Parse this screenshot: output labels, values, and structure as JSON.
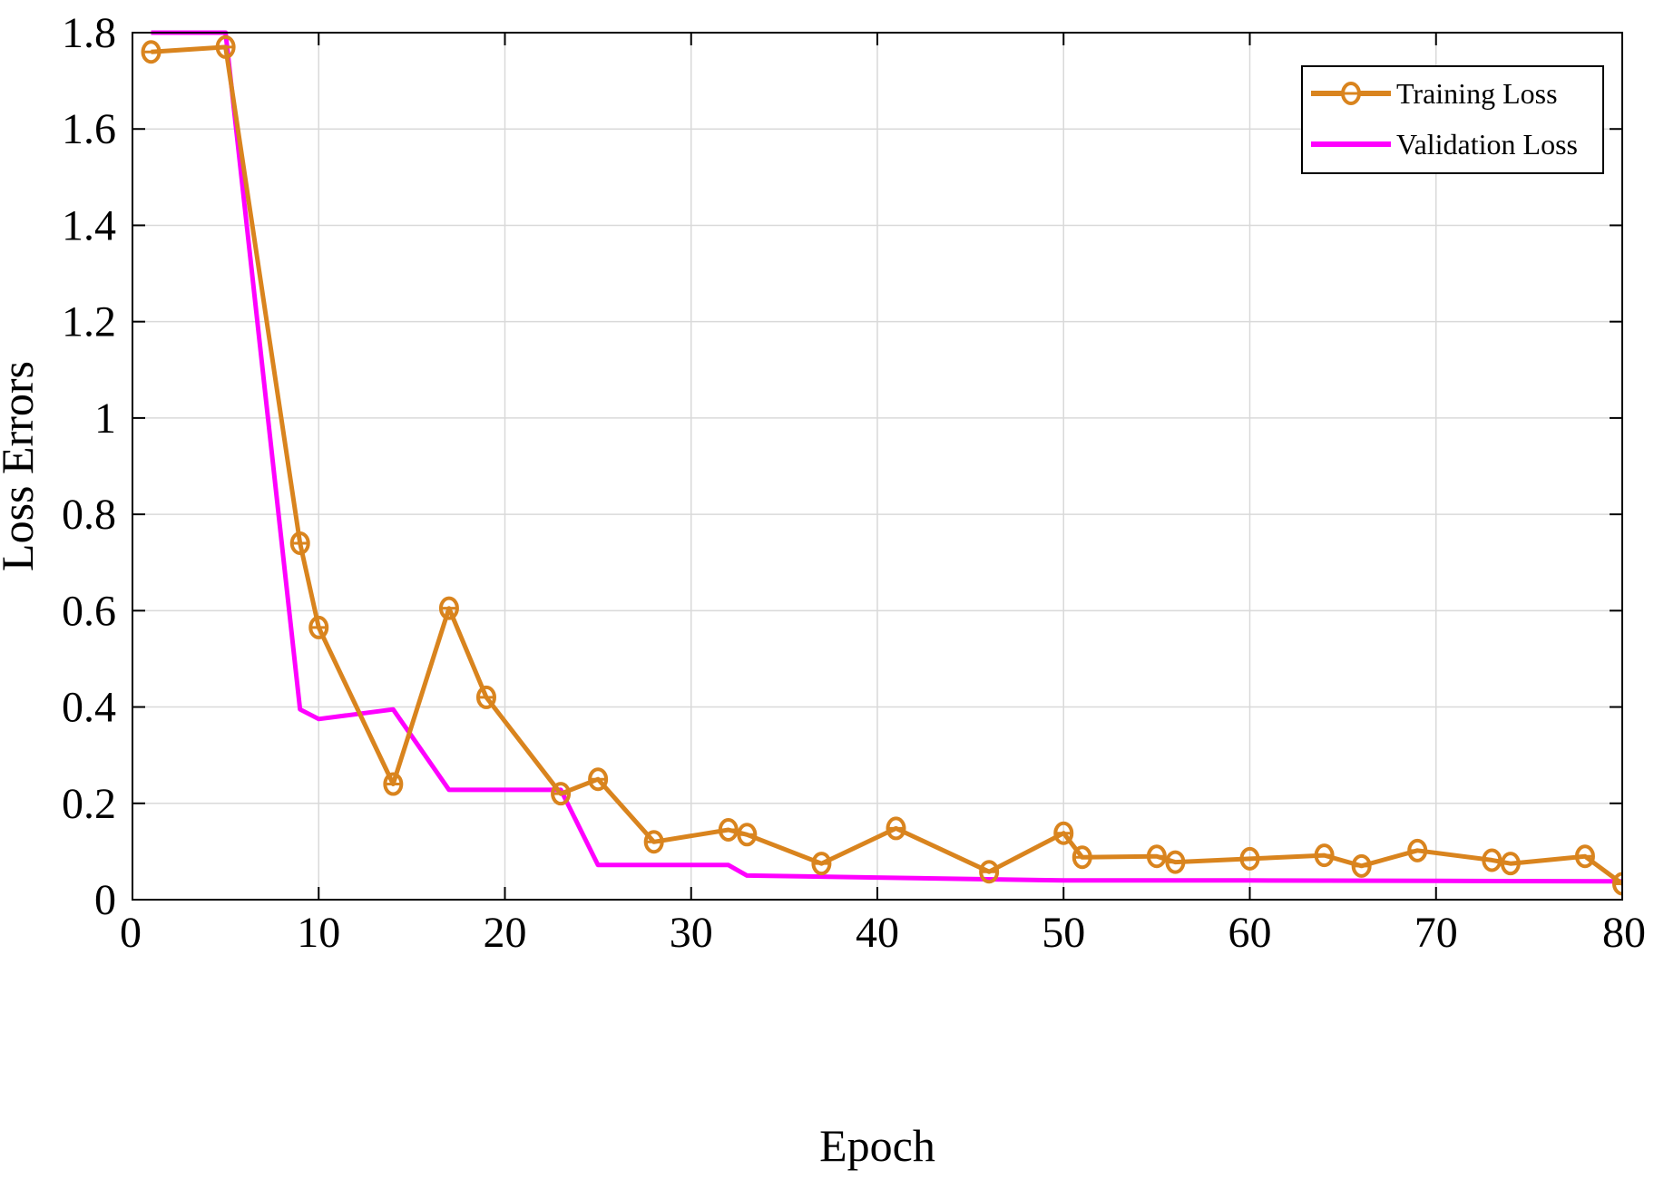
{
  "chart_data": {
    "type": "line",
    "title": "",
    "xlabel": "Epoch",
    "ylabel": "Loss Errors",
    "xlim": [
      0,
      80
    ],
    "ylim": [
      0,
      1.8
    ],
    "xticks": [
      0,
      10,
      20,
      30,
      40,
      50,
      60,
      70,
      80
    ],
    "xtick_labels": [
      "0",
      "10",
      "20",
      "30",
      "40",
      "50",
      "60",
      "70",
      "80"
    ],
    "yticks": [
      0,
      0.2,
      0.4,
      0.6,
      0.8,
      1,
      1.2,
      1.4,
      1.6,
      1.8
    ],
    "ytick_labels": [
      "0",
      "0.2",
      "0.4",
      "0.6",
      "0.8",
      "1",
      "1.2",
      "1.4",
      "1.6",
      "1.8"
    ],
    "grid": true,
    "legend_position": "top-right",
    "series": [
      {
        "name": "Training Loss",
        "color": "#D9841E",
        "marker": "circle",
        "points": [
          [
            1,
            1.76
          ],
          [
            5,
            1.77
          ],
          [
            9,
            0.74
          ],
          [
            10,
            0.565
          ],
          [
            14,
            0.24
          ],
          [
            17,
            0.605
          ],
          [
            19,
            0.42
          ],
          [
            23,
            0.22
          ],
          [
            25,
            0.25
          ],
          [
            28,
            0.12
          ],
          [
            32,
            0.145
          ],
          [
            33,
            0.135
          ],
          [
            37,
            0.075
          ],
          [
            41,
            0.148
          ],
          [
            46,
            0.058
          ],
          [
            50,
            0.138
          ],
          [
            51,
            0.088
          ],
          [
            55,
            0.09
          ],
          [
            56,
            0.078
          ],
          [
            60,
            0.085
          ],
          [
            64,
            0.092
          ],
          [
            66,
            0.07
          ],
          [
            69,
            0.102
          ],
          [
            73,
            0.082
          ],
          [
            74,
            0.075
          ],
          [
            78,
            0.09
          ],
          [
            80,
            0.033
          ]
        ]
      },
      {
        "name": "Validation Loss",
        "color": "#FF00FF",
        "marker": "none",
        "points": [
          [
            1,
            1.8
          ],
          [
            5,
            1.8
          ],
          [
            9,
            0.395
          ],
          [
            10,
            0.375
          ],
          [
            14,
            0.395
          ],
          [
            17,
            0.228
          ],
          [
            23,
            0.228
          ],
          [
            25,
            0.072
          ],
          [
            32,
            0.072
          ],
          [
            33,
            0.05
          ],
          [
            40,
            0.046
          ],
          [
            50,
            0.04
          ],
          [
            60,
            0.04
          ],
          [
            70,
            0.039
          ],
          [
            80,
            0.038
          ]
        ]
      }
    ]
  }
}
